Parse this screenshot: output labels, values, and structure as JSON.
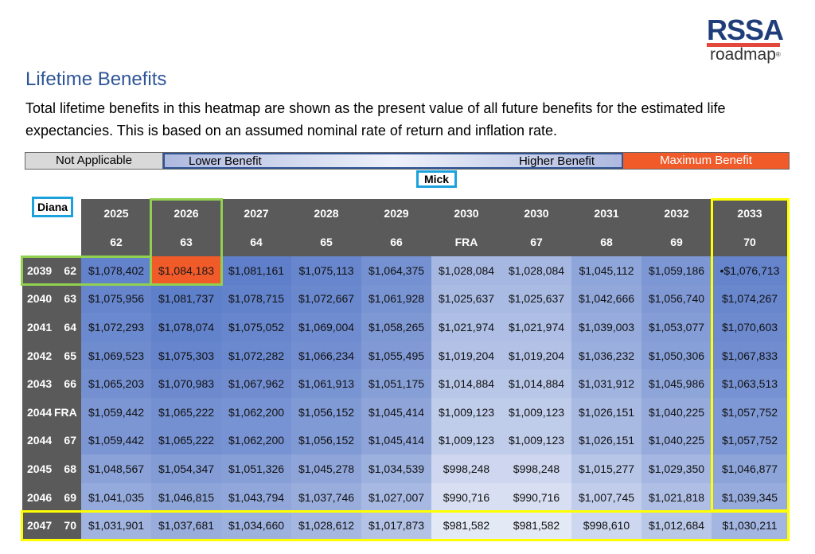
{
  "logo": {
    "brand": "RSSA",
    "sub": "roadmap",
    "mark": "®"
  },
  "title": "Lifetime Benefits",
  "description": "Total lifetime benefits in this heatmap are shown as the present value of all future benefits for the estimated life expectancies. This is based on an assumed nominal rate of return and inflation rate.",
  "legend": {
    "not_applicable": "Not Applicable",
    "lower": "Lower Benefit",
    "higher": "Higher Benefit",
    "maximum": "Maximum Benefit"
  },
  "labels": {
    "column_person": "Mick",
    "row_person": "Diana"
  },
  "columns": [
    {
      "year": "2025",
      "age": "62"
    },
    {
      "year": "2026",
      "age": "63"
    },
    {
      "year": "2027",
      "age": "64"
    },
    {
      "year": "2028",
      "age": "65"
    },
    {
      "year": "2029",
      "age": "66"
    },
    {
      "year": "2030",
      "age": "FRA"
    },
    {
      "year": "2030",
      "age": "67"
    },
    {
      "year": "2031",
      "age": "68"
    },
    {
      "year": "2032",
      "age": "69"
    },
    {
      "year": "2033",
      "age": "70"
    }
  ],
  "rows": [
    {
      "year": "2039",
      "age": "62",
      "values": [
        "$1,078,402",
        "$1,084,183",
        "$1,081,161",
        "$1,075,113",
        "$1,064,375",
        "$1,028,084",
        "$1,028,084",
        "$1,045,112",
        "$1,059,186",
        "•$1,076,713"
      ]
    },
    {
      "year": "2040",
      "age": "63",
      "values": [
        "$1,075,956",
        "$1,081,737",
        "$1,078,715",
        "$1,072,667",
        "$1,061,928",
        "$1,025,637",
        "$1,025,637",
        "$1,042,666",
        "$1,056,740",
        "$1,074,267"
      ]
    },
    {
      "year": "2041",
      "age": "64",
      "values": [
        "$1,072,293",
        "$1,078,074",
        "$1,075,052",
        "$1,069,004",
        "$1,058,265",
        "$1,021,974",
        "$1,021,974",
        "$1,039,003",
        "$1,053,077",
        "$1,070,603"
      ]
    },
    {
      "year": "2042",
      "age": "65",
      "values": [
        "$1,069,523",
        "$1,075,303",
        "$1,072,282",
        "$1,066,234",
        "$1,055,495",
        "$1,019,204",
        "$1,019,204",
        "$1,036,232",
        "$1,050,306",
        "$1,067,833"
      ]
    },
    {
      "year": "2043",
      "age": "66",
      "values": [
        "$1,065,203",
        "$1,070,983",
        "$1,067,962",
        "$1,061,913",
        "$1,051,175",
        "$1,014,884",
        "$1,014,884",
        "$1,031,912",
        "$1,045,986",
        "$1,063,513"
      ]
    },
    {
      "year": "2044",
      "age": "FRA",
      "values": [
        "$1,059,442",
        "$1,065,222",
        "$1,062,200",
        "$1,056,152",
        "$1,045,414",
        "$1,009,123",
        "$1,009,123",
        "$1,026,151",
        "$1,040,225",
        "$1,057,752"
      ]
    },
    {
      "year": "2044",
      "age": "67",
      "values": [
        "$1,059,442",
        "$1,065,222",
        "$1,062,200",
        "$1,056,152",
        "$1,045,414",
        "$1,009,123",
        "$1,009,123",
        "$1,026,151",
        "$1,040,225",
        "$1,057,752"
      ]
    },
    {
      "year": "2045",
      "age": "68",
      "values": [
        "$1,048,567",
        "$1,054,347",
        "$1,051,326",
        "$1,045,278",
        "$1,034,539",
        "$998,248",
        "$998,248",
        "$1,015,277",
        "$1,029,350",
        "$1,046,877"
      ]
    },
    {
      "year": "2046",
      "age": "69",
      "values": [
        "$1,041,035",
        "$1,046,815",
        "$1,043,794",
        "$1,037,746",
        "$1,027,007",
        "$990,716",
        "$990,716",
        "$1,007,745",
        "$1,021,818",
        "$1,039,345"
      ]
    },
    {
      "year": "2047",
      "age": "70",
      "values": [
        "$1,031,901",
        "$1,037,681",
        "$1,034,660",
        "$1,028,612",
        "$1,017,873",
        "$981,582",
        "$981,582",
        "$998,610",
        "$1,012,684",
        "$1,030,211"
      ]
    }
  ],
  "colors": {
    "header": "#5a5a5a",
    "maximum": "#f15a29",
    "highlight_green": "#92d050",
    "highlight_yellow": "#ffff00",
    "label_border": "#1ba1dc",
    "title": "#2f5597",
    "heat_high": "#5b7cc9",
    "heat_low": "#e4e9f6"
  }
}
